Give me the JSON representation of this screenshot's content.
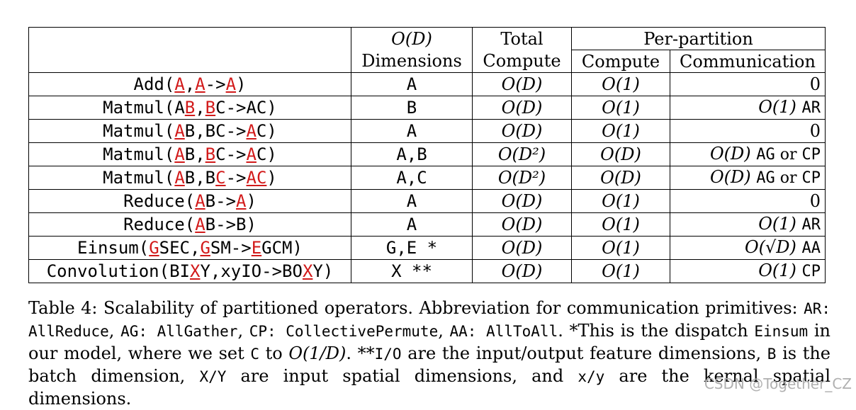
{
  "header": {
    "col_dims_line1": "O(D)",
    "col_dims_line2": "Dimensions",
    "col_total_line1": "Total",
    "col_total_line2": "Compute",
    "col_per_partition": "Per-partition",
    "col_compute": "Compute",
    "col_communication": "Communication"
  },
  "rows": [
    {
      "op_parts": [
        [
          "Add(",
          0
        ],
        [
          "A",
          1
        ],
        [
          ",",
          0
        ],
        [
          "A",
          1
        ],
        [
          "->",
          0
        ],
        [
          "A",
          1
        ],
        [
          ")",
          0
        ]
      ],
      "dims": "A",
      "total": "O(D)",
      "compute": "O(1)",
      "comm_math": "",
      "comm_text": "0"
    },
    {
      "op_parts": [
        [
          "Matmul(A",
          0
        ],
        [
          "B",
          1
        ],
        [
          ",",
          0
        ],
        [
          "B",
          1
        ],
        [
          "C->AC)",
          0
        ]
      ],
      "dims": "B",
      "total": "O(D)",
      "compute": "O(1)",
      "comm_math": "O(1)",
      "comm_text": "AR"
    },
    {
      "op_parts": [
        [
          "Matmul(",
          0
        ],
        [
          "A",
          1
        ],
        [
          "B,BC->",
          0
        ],
        [
          "A",
          1
        ],
        [
          "C)",
          0
        ]
      ],
      "dims": "A",
      "total": "O(D)",
      "compute": "O(1)",
      "comm_math": "",
      "comm_text": "0"
    },
    {
      "op_parts": [
        [
          "Matmul(",
          0
        ],
        [
          "A",
          1
        ],
        [
          "B,",
          0
        ],
        [
          "B",
          1
        ],
        [
          "C->",
          0
        ],
        [
          "A",
          1
        ],
        [
          "C)",
          0
        ]
      ],
      "dims": "A,B",
      "total": "O(D²)",
      "compute": "O(D)",
      "comm_math": "O(D)",
      "comm_text": "AG or CP"
    },
    {
      "op_parts": [
        [
          "Matmul(",
          0
        ],
        [
          "A",
          1
        ],
        [
          "B,B",
          0
        ],
        [
          "C",
          1
        ],
        [
          "->",
          0
        ],
        [
          "A",
          1
        ],
        [
          "C",
          1
        ],
        [
          ")",
          0
        ]
      ],
      "dims": "A,C",
      "total": "O(D²)",
      "compute": "O(D)",
      "comm_math": "O(D)",
      "comm_text": "AG or CP"
    },
    {
      "op_parts": [
        [
          "Reduce(",
          0
        ],
        [
          "A",
          1
        ],
        [
          "B->",
          0
        ],
        [
          "A",
          1
        ],
        [
          ")",
          0
        ]
      ],
      "dims": "A",
      "total": "O(D)",
      "compute": "O(1)",
      "comm_math": "",
      "comm_text": "0"
    },
    {
      "op_parts": [
        [
          "Reduce(",
          0
        ],
        [
          "A",
          1
        ],
        [
          "B->B)",
          0
        ]
      ],
      "dims": "A",
      "total": "O(D)",
      "compute": "O(1)",
      "comm_math": "O(1)",
      "comm_text": "AR"
    },
    {
      "op_parts": [
        [
          "Einsum(",
          0
        ],
        [
          "G",
          1
        ],
        [
          "SEC,",
          0
        ],
        [
          "G",
          1
        ],
        [
          "SM->",
          0
        ],
        [
          "E",
          1
        ],
        [
          "GCM)",
          0
        ]
      ],
      "dims": "G,E *",
      "total": "O(D)",
      "compute": "O(1)",
      "comm_math": "O(√D)",
      "comm_text": "AA"
    },
    {
      "op_parts": [
        [
          "Convolution(BI",
          0
        ],
        [
          "X",
          1
        ],
        [
          "Y,xyIO->BO",
          0
        ],
        [
          "X",
          1
        ],
        [
          "Y)",
          0
        ]
      ],
      "dims": "X **",
      "total": "O(D)",
      "compute": "O(1)",
      "comm_math": "O(1)",
      "comm_text": "CP"
    }
  ],
  "caption": {
    "p1": "Table 4: Scalability of partitioned operators. Abbreviation for communication primitives: ",
    "m1": "AR: AllReduce",
    "p2": ", ",
    "m2": "AG: AllGather",
    "p3": ", ",
    "m3": "CP: CollectivePermute",
    "p4": ", ",
    "m4": "AA: AllToAll",
    "p5": ". *This is the dispatch ",
    "m5": "Einsum",
    "p6": " in our model, where we set ",
    "m6": "C",
    "p7": " to ",
    "math1": "O(1/D)",
    "p8": ". **",
    "m7": "I/O",
    "p9": " are the input/output feature dimensions, ",
    "m8": "B",
    "p10": " is the batch dimension, ",
    "m9": "X/Y",
    "p11": " are input spatial dimensions, and ",
    "m10": "x/y",
    "p12": " are the kernal spatial dimensions."
  },
  "watermark": "CSDN @Together_CZ"
}
